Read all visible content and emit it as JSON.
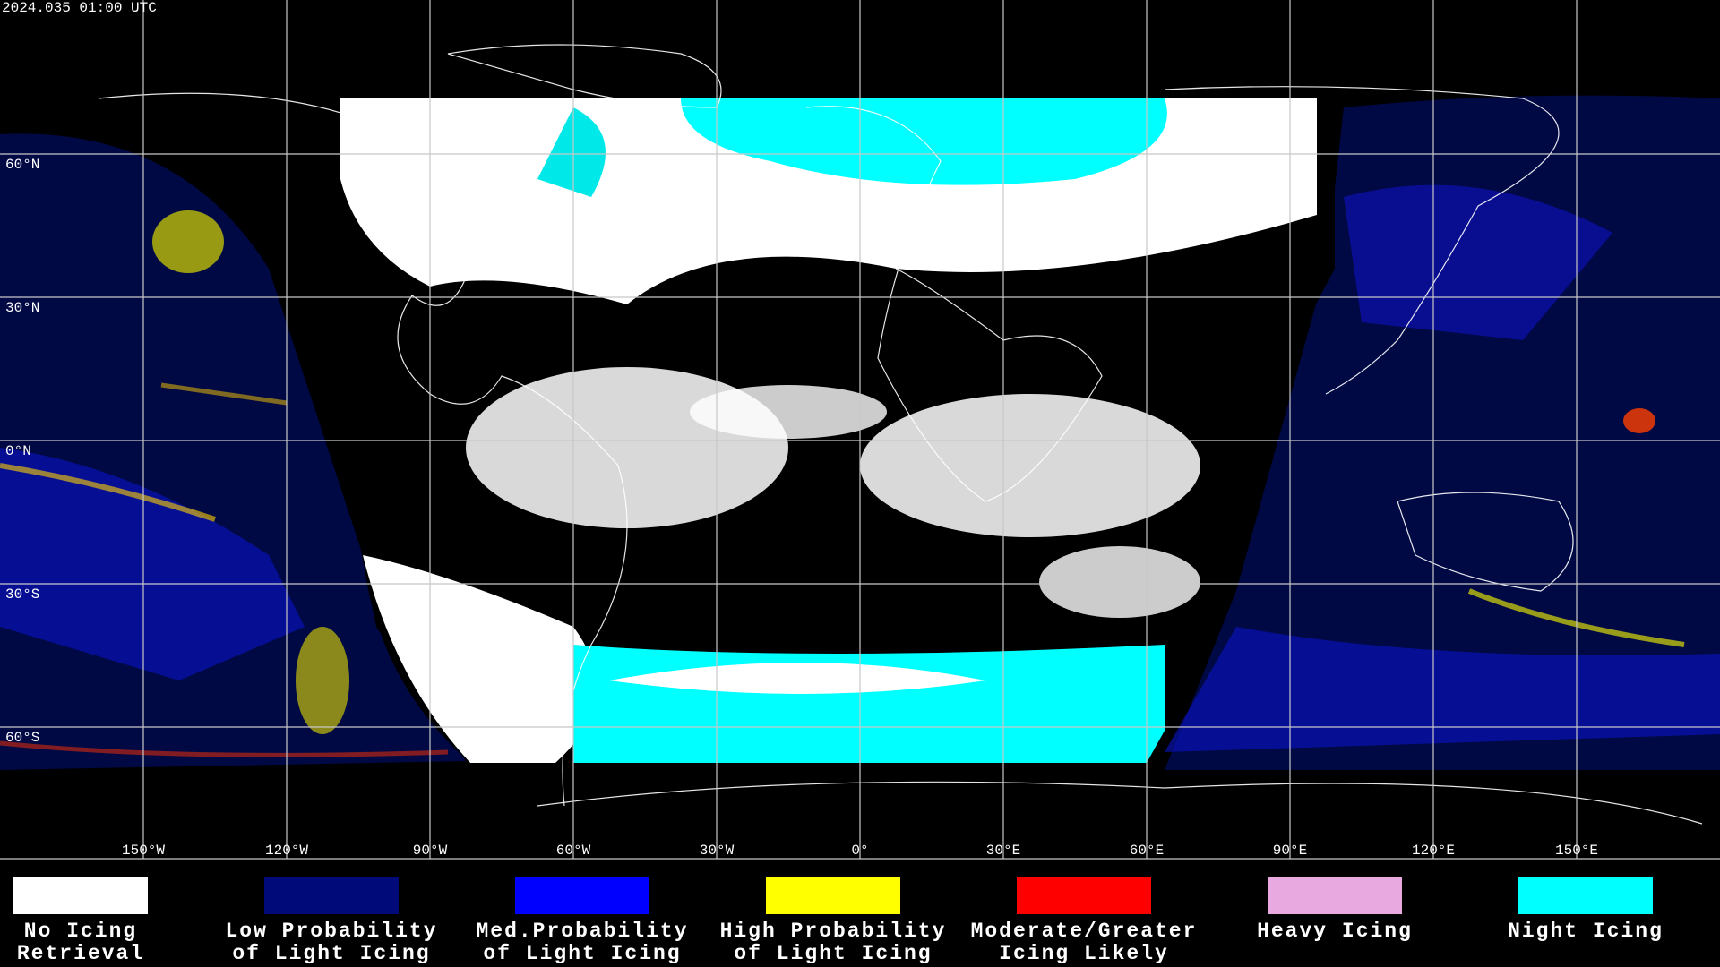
{
  "header": {
    "timestamp": "2024.035 01:00 UTC"
  },
  "map": {
    "lonticks": [
      {
        "value": -150,
        "label": "150°W"
      },
      {
        "value": -120,
        "label": "120°W"
      },
      {
        "value": -90,
        "label": "90°W"
      },
      {
        "value": -60,
        "label": "60°W"
      },
      {
        "value": -30,
        "label": "30°W"
      },
      {
        "value": 0,
        "label": "0°"
      },
      {
        "value": 30,
        "label": "30°E"
      },
      {
        "value": 60,
        "label": "60°E"
      },
      {
        "value": 90,
        "label": "90°E"
      },
      {
        "value": 120,
        "label": "120°E"
      },
      {
        "value": 150,
        "label": "150°E"
      }
    ],
    "latticks": [
      {
        "value": 60,
        "label": "60°N"
      },
      {
        "value": 30,
        "label": "30°N"
      },
      {
        "value": 0,
        "label": "0°N"
      },
      {
        "value": -30,
        "label": "30°S"
      },
      {
        "value": -60,
        "label": "60°S"
      }
    ]
  },
  "legend": {
    "items": [
      {
        "lines": [
          "No Icing",
          "Retrieval"
        ],
        "color": "#ffffff"
      },
      {
        "lines": [
          "Low Probability",
          "of Light Icing"
        ],
        "color": "#000a78"
      },
      {
        "lines": [
          "Med.Probability",
          "of Light Icing"
        ],
        "color": "#0000ff"
      },
      {
        "lines": [
          "High Probability",
          "of Light Icing"
        ],
        "color": "#ffff00"
      },
      {
        "lines": [
          "Moderate/Greater",
          "Icing Likely"
        ],
        "color": "#ff0000"
      },
      {
        "lines": [
          "Heavy Icing"
        ],
        "color": "#e8a8e0"
      },
      {
        "lines": [
          "Night Icing"
        ],
        "color": "#00ffff"
      }
    ]
  }
}
